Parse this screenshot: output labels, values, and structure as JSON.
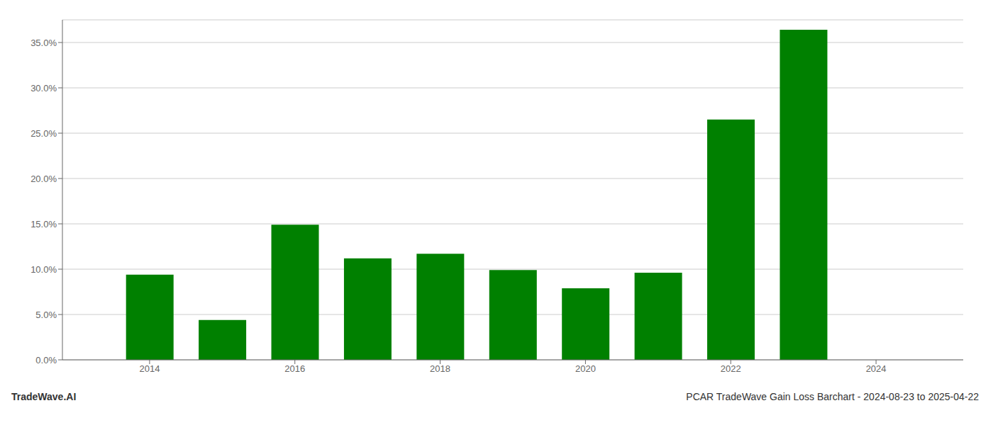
{
  "chart_data": {
    "type": "bar",
    "x": [
      2014,
      2015,
      2016,
      2017,
      2018,
      2019,
      2020,
      2021,
      2022,
      2023
    ],
    "values": [
      0.094,
      0.044,
      0.149,
      0.112,
      0.117,
      0.099,
      0.079,
      0.096,
      0.265,
      0.364
    ],
    "color": "#008000",
    "xlim": [
      2012.8,
      2025.2
    ],
    "xticks": [
      2014,
      2016,
      2018,
      2020,
      2022,
      2024
    ],
    "ylim": [
      0,
      0.375
    ],
    "yticks": [
      {
        "value": 0.0,
        "label": "0.0%"
      },
      {
        "value": 0.05,
        "label": "5.0%"
      },
      {
        "value": 0.1,
        "label": "10.0%"
      },
      {
        "value": 0.15,
        "label": "15.0%"
      },
      {
        "value": 0.2,
        "label": "20.0%"
      },
      {
        "value": 0.25,
        "label": "25.0%"
      },
      {
        "value": 0.3,
        "label": "30.0%"
      },
      {
        "value": 0.35,
        "label": "35.0%"
      }
    ],
    "grid": true,
    "annotations": [
      "TradeWave.AI",
      "PCAR TradeWave Gain Loss Barchart - 2024-08-23 to 2025-04-22"
    ]
  }
}
